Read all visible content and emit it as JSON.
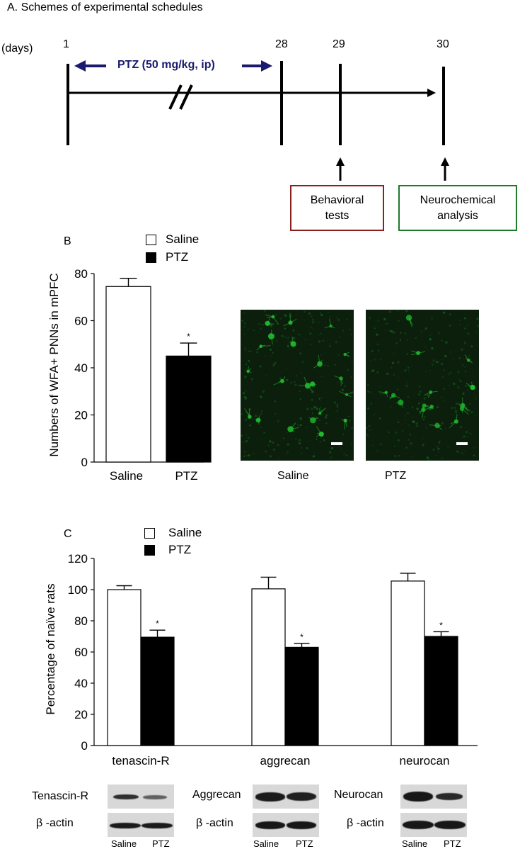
{
  "panel_a": {
    "title": "A. Schemes of experimental schedules",
    "days_label": "(days)",
    "day_labels": [
      "1",
      "28",
      "29",
      "30"
    ],
    "treatment_label": "PTZ (50 mg/kg, ip)",
    "box_behavioral": "Behavioral\ntests",
    "box_neurochemical": "Neurochemical\nanalysis",
    "colors": {
      "treatment": "#1a1a6e",
      "behavioral_box": "#8b2020",
      "neuro_box": "#1f7a2a"
    }
  },
  "panel_b": {
    "letter": "B",
    "legend": [
      "Saline",
      "PTZ"
    ],
    "image_labels": [
      "Saline",
      "PTZ"
    ],
    "micrograph_color": "#1fbf2f"
  },
  "panel_c": {
    "letter": "C",
    "legend": [
      "Saline",
      "PTZ"
    ],
    "blot_rows": [
      {
        "label": "Tenascin-R",
        "actin": "β -actin"
      },
      {
        "label": "Aggrecan",
        "actin": "β -actin"
      },
      {
        "label": "Neurocan",
        "actin": "β -actin"
      }
    ],
    "lane_labels": [
      "Saline",
      "PTZ"
    ]
  },
  "chart_data": [
    {
      "type": "bar",
      "categories": [
        "Saline",
        "PTZ"
      ],
      "values": [
        74.5,
        45
      ],
      "errors": [
        3.5,
        5.5
      ],
      "significance": [
        "",
        "*"
      ],
      "fills": [
        "#ffffff",
        "#000000"
      ],
      "ylabel": "Numbers of WFA+ PNNs in mPFC",
      "xlabel": "",
      "ylim": [
        0,
        80
      ],
      "yticks": [
        0,
        20,
        40,
        60,
        80
      ]
    },
    {
      "type": "bar",
      "categories": [
        "tenascin-R",
        "aggrecan",
        "neurocan"
      ],
      "series": [
        {
          "name": "Saline",
          "values": [
            100,
            100.5,
            105.5
          ],
          "errors": [
            2.5,
            7.5,
            5
          ],
          "fill": "#ffffff"
        },
        {
          "name": "PTZ",
          "values": [
            69.5,
            63,
            70
          ],
          "errors": [
            4.5,
            2.5,
            3
          ],
          "fill": "#000000"
        }
      ],
      "significance": {
        "PTZ": [
          "*",
          "*",
          "*"
        ]
      },
      "ylabel": "Percentage of naïve rats",
      "xlabel": "",
      "ylim": [
        0,
        120
      ],
      "yticks": [
        0,
        20,
        40,
        60,
        80,
        100,
        120
      ]
    }
  ]
}
